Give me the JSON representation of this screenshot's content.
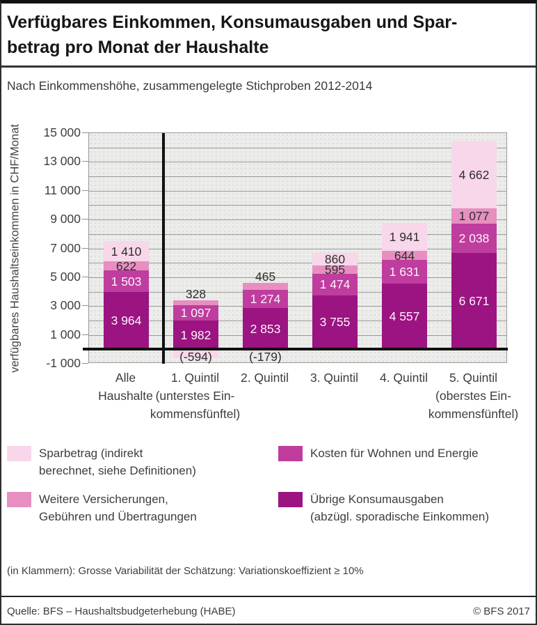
{
  "page": {
    "title": "Verfügbares Einkommen, Konsumausgaben und Spar-\nbetrag pro Monat der Haushalte",
    "subtitle": "Nach Einkommenshöhe, zusammengelegte Stichproben 2012-2014",
    "footnote": "(in Klammern): Grosse Variabilität der Schätzung: Variationskoeffizient ≥ 10%",
    "source": "Quelle: BFS – Haushaltsbudgeterhebung (HABE)",
    "copyright": "© BFS 2017"
  },
  "chart_data": {
    "type": "bar",
    "stacked": true,
    "title": "Verfügbares Einkommen, Konsumausgaben und Sparbetrag pro Monat der Haushalte",
    "subtitle": "Nach Einkommenshöhe, zusammengelegte Stichproben 2012-2014",
    "ylabel": "verfügbares Haushaltseinkommen in CHF/Monat",
    "unit": "CHF/Monat",
    "ylim": [
      -1000,
      15000
    ],
    "grid": true,
    "gridline_step": 1000,
    "legend_position": "bottom",
    "yticks": [
      {
        "value": 15000,
        "label": "15 000"
      },
      {
        "value": 13000,
        "label": "13 000"
      },
      {
        "value": 11000,
        "label": "11 000"
      },
      {
        "value": 9000,
        "label": "9 000"
      },
      {
        "value": 7000,
        "label": "7 000"
      },
      {
        "value": 5000,
        "label": "5 000"
      },
      {
        "value": 3000,
        "label": "3 000"
      },
      {
        "value": 1000,
        "label": "1 000"
      },
      {
        "value": -1000,
        "label": "-1 000"
      }
    ],
    "categories": [
      "Alle\nHaushalte",
      "1. Quintil\n(unterstes Ein-\nkommensfünftel)",
      "2. Quintil",
      "3. Quintil",
      "4. Quintil",
      "5. Quintil\n(oberstes Ein-\nkommensfünftel)"
    ],
    "series": [
      {
        "key": "uebrige",
        "name": "Übrige Konsumausgaben (abzügl. sporadische Einkommen)",
        "color": "#9B1482",
        "label_color": "#FDF3F9",
        "values": [
          3964,
          1982,
          2853,
          3755,
          4557,
          6671
        ],
        "labels": [
          "3 964",
          "1 982",
          "2 853",
          "3 755",
          "4 557",
          "6 671"
        ]
      },
      {
        "key": "wohnen",
        "name": "Kosten für Wohnen und Energie",
        "color": "#BE3D9E",
        "label_color": "#FDF3F9",
        "values": [
          1503,
          1097,
          1274,
          1474,
          1631,
          2038
        ],
        "labels": [
          "1 503",
          "1 097",
          "1 274",
          "1 474",
          "1 631",
          "2 038"
        ]
      },
      {
        "key": "versicherungen",
        "name": "Weitere Versicherungen, Gebühren und Übertragungen",
        "color": "#E78FC1",
        "label_color": "#2e2e2e",
        "values": [
          622,
          328,
          465,
          595,
          644,
          1077
        ],
        "labels": [
          "622",
          "328",
          "465",
          "595",
          "644",
          "1 077"
        ]
      },
      {
        "key": "sparbetrag",
        "name": "Sparbetrag (indirekt berechnet, siehe Definitionen)",
        "color": "#F8D7EA",
        "label_color": "#2e2e2e",
        "values": [
          1410,
          -594,
          -179,
          860,
          1941,
          4662
        ],
        "labels": [
          "1 410",
          "(-594)",
          "(-179)",
          "860",
          "1 941",
          "4 662"
        ]
      }
    ],
    "legend": [
      {
        "key": "sparbetrag",
        "label": "Sparbetrag (indirekt\nberechnet, siehe Definitionen)"
      },
      {
        "key": "versicherungen",
        "label": "Weitere Versicherungen,\nGebühren und Übertragungen"
      },
      {
        "key": "wohnen",
        "label": "Kosten für Wohnen und Energie"
      },
      {
        "key": "uebrige",
        "label": "Übrige Konsumausgaben\n(abzügl. sporadische Einkommen)"
      }
    ]
  }
}
